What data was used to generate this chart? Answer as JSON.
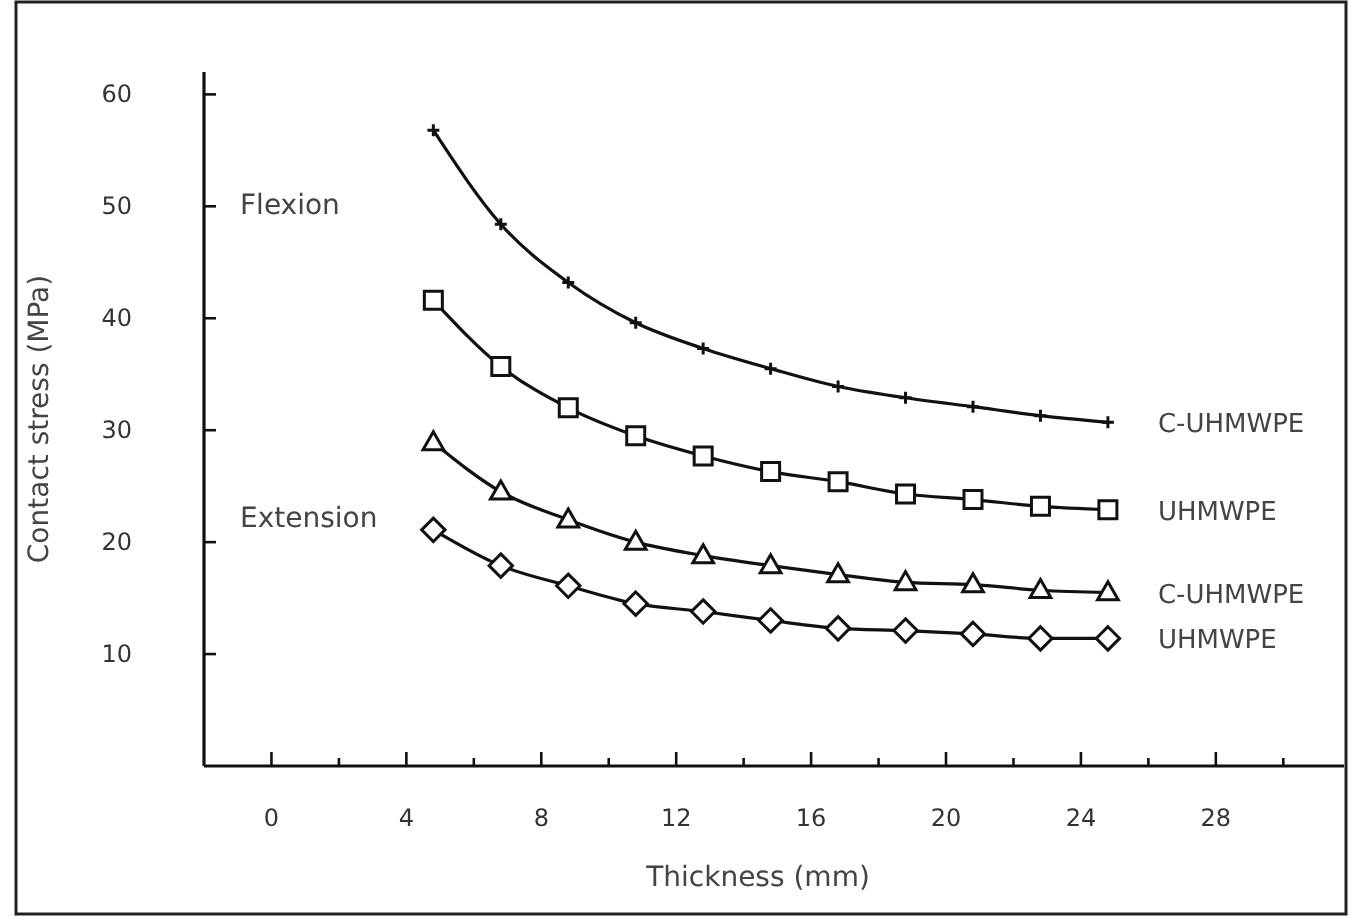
{
  "chart_data": {
    "type": "line",
    "xlabel": "Thickness (mm)",
    "ylabel": "Contact stress (MPa)",
    "annotations": [
      "Flexion",
      "Extension"
    ],
    "x": [
      4.8,
      6.8,
      8.8,
      10.8,
      12.8,
      14.8,
      16.8,
      18.8,
      20.8,
      22.8,
      24.8
    ],
    "xlim": [
      -2,
      31.8
    ],
    "ylim": [
      0,
      62
    ],
    "xticks": [
      0,
      {
        "value": 2,
        "label": null
      },
      4,
      {
        "value": 6,
        "label": null
      },
      8,
      {
        "value": 10,
        "label": null
      },
      12,
      {
        "value": 14,
        "label": null
      },
      16,
      {
        "value": 18,
        "label": null
      },
      20,
      {
        "value": 22,
        "label": null
      },
      24,
      {
        "value": 26,
        "label": null
      },
      28,
      {
        "value": 30,
        "label": null
      }
    ],
    "yticks": [
      10,
      20,
      30,
      40,
      50,
      60
    ],
    "grid": false,
    "line_style": "solid",
    "series": [
      {
        "name": "C-UHMWPE",
        "color": "#111111",
        "marker": "cross",
        "values": [
          56.8,
          48.4,
          43.2,
          39.6,
          37.3,
          35.5,
          33.9,
          32.9,
          32.1,
          31.3,
          30.7
        ]
      },
      {
        "name": "UHMWPE",
        "color": "#111111",
        "marker": "square",
        "values": [
          41.6,
          35.7,
          32.0,
          29.5,
          27.7,
          26.3,
          25.4,
          24.3,
          23.8,
          23.2,
          22.9
        ]
      },
      {
        "name": "C-UHMWPE",
        "color": "#111111",
        "marker": "triangle",
        "values": [
          28.9,
          24.5,
          22.0,
          20.0,
          18.8,
          17.9,
          17.1,
          16.4,
          16.2,
          15.7,
          15.5
        ]
      },
      {
        "name": "UHMWPE",
        "color": "#111111",
        "marker": "diamond",
        "values": [
          21.1,
          17.9,
          16.1,
          14.5,
          13.8,
          13.0,
          12.3,
          12.1,
          11.8,
          11.4,
          11.4
        ]
      }
    ]
  }
}
